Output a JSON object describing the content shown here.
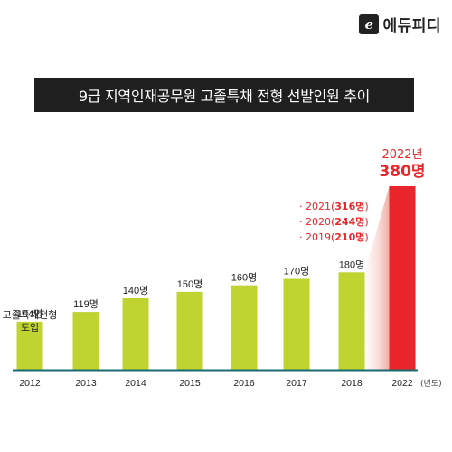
{
  "brand": {
    "logo_text": "에듀피디",
    "logo_mark": "e"
  },
  "chart_data": {
    "type": "bar",
    "title": "9급 지역인재공무원 고졸특채 전형 선발인원 추이",
    "categories": [
      "2012",
      "2013",
      "2014",
      "2015",
      "2016",
      "2017",
      "2018",
      "2022"
    ],
    "values": [
      104,
      119,
      140,
      150,
      160,
      170,
      180,
      380
    ],
    "value_labels": [
      "104명",
      "119명",
      "140명",
      "150명",
      "160명",
      "170명",
      "180명",
      "380명"
    ],
    "x_unit": "(년도)",
    "annotation_first": [
      "고졸특채전형",
      "도입"
    ],
    "highlight": {
      "year_label": "2022년",
      "value_label": "380명"
    },
    "notes": [
      {
        "year": "2021",
        "value": "316명"
      },
      {
        "year": "2020",
        "value": "244명"
      },
      {
        "year": "2019",
        "value": "210명"
      }
    ],
    "colors": {
      "bar": "#bfd430",
      "highlight": "#e8262b",
      "axis": "#1a6a73"
    }
  }
}
